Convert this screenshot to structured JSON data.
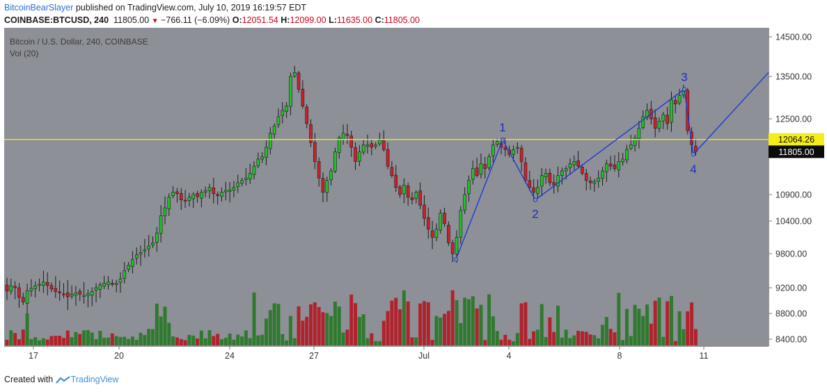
{
  "header": {
    "user": "BitcoinBearSlayer",
    "published_text": " published on TradingView.com, July 10, 2019 16:19:57 EDT",
    "symbol": "COINBASE:BTCUSD, 240",
    "last": "11805.00",
    "change": "−766.11 (−6.09%)",
    "o_label": "O:",
    "o": "12051.54",
    "h_label": "H:",
    "h": "12099.00",
    "l_label": "L:",
    "l": "11635.00",
    "c_label": "C:",
    "c": "11805.00"
  },
  "chart": {
    "title": "Bitcoin / U.S. Dollar, 240, COINBASE",
    "volume_label": "Vol (20)"
  },
  "footer": {
    "created_with": "Created with",
    "brand": "TradingView"
  },
  "colors": {
    "background": "#8e9097",
    "up": "#22c12a",
    "down": "#d21f2a",
    "vol_up": "#2f7a2e",
    "vol_down": "#b0232d",
    "wave_line": "#1b3bd6",
    "horizontal_line": "#f2e81b"
  },
  "chart_data": {
    "type": "candlestick",
    "price_axis_ticks": [
      "14500.00",
      "13500.00",
      "12500.00",
      "11805.00",
      "10900.00",
      "10400.00",
      "9800.00",
      "9200.00",
      "8800.00",
      "8400.00"
    ],
    "time_axis_ticks": [
      "17",
      "20",
      "24",
      "27",
      "Jul",
      "4",
      "8",
      "11"
    ],
    "horizontal_line": {
      "value": 12064.26,
      "label": "12064.26"
    },
    "last_price": {
      "value": 11805.0,
      "label": "11805.00"
    },
    "wave_labels": [
      "1",
      "2",
      "3",
      "4"
    ],
    "wave_points": [
      9700,
      12060,
      10800,
      13200,
      11750,
      13600
    ],
    "closes": [
      9150,
      9230,
      9200,
      9050,
      8980,
      9150,
      9190,
      9230,
      9260,
      9300,
      9240,
      9180,
      9140,
      9120,
      9100,
      9060,
      9100,
      9120,
      9100,
      9080,
      9110,
      9140,
      9200,
      9250,
      9280,
      9300,
      9260,
      9280,
      9350,
      9500,
      9600,
      9700,
      9780,
      9820,
      9870,
      9940,
      10000,
      10180,
      10500,
      10650,
      10850,
      10950,
      10920,
      10800,
      10790,
      10850,
      10900,
      10860,
      10950,
      10980,
      11050,
      10920,
      10880,
      10950,
      10990,
      11000,
      11050,
      11150,
      11200,
      11250,
      11350,
      11500,
      11650,
      11700,
      11900,
      12200,
      12350,
      12550,
      12700,
      12800,
      13500,
      13600,
      13200,
      12800,
      12400,
      12000,
      11600,
      11250,
      10950,
      11200,
      11400,
      11800,
      12100,
      12200,
      12150,
      11900,
      11600,
      11800,
      11950,
      11950,
      11900,
      11950,
      12050,
      11850,
      11500,
      11300,
      11050,
      10900,
      11100,
      10850,
      10800,
      10950,
      10700,
      10450,
      10250,
      10100,
      10250,
      10550,
      10350,
      10000,
      9800,
      10100,
      10600,
      10900,
      11200,
      11450,
      11300,
      11550,
      11450,
      11700,
      11950,
      12020,
      11900,
      11850,
      11750,
      11850,
      11900,
      11600,
      11200,
      11050,
      10950,
      11050,
      11300,
      11350,
      11150,
      11100,
      11300,
      11400,
      11450,
      11550,
      11600,
      11500,
      11350,
      11200,
      11150,
      11180,
      11250,
      11400,
      11550,
      11500,
      11450,
      11600,
      11650,
      11850,
      11950,
      12100,
      12300,
      12550,
      12700,
      12500,
      12300,
      12450,
      12600,
      12400,
      12950,
      12850,
      13050,
      13150,
      12250,
      11950,
      11805
    ]
  }
}
